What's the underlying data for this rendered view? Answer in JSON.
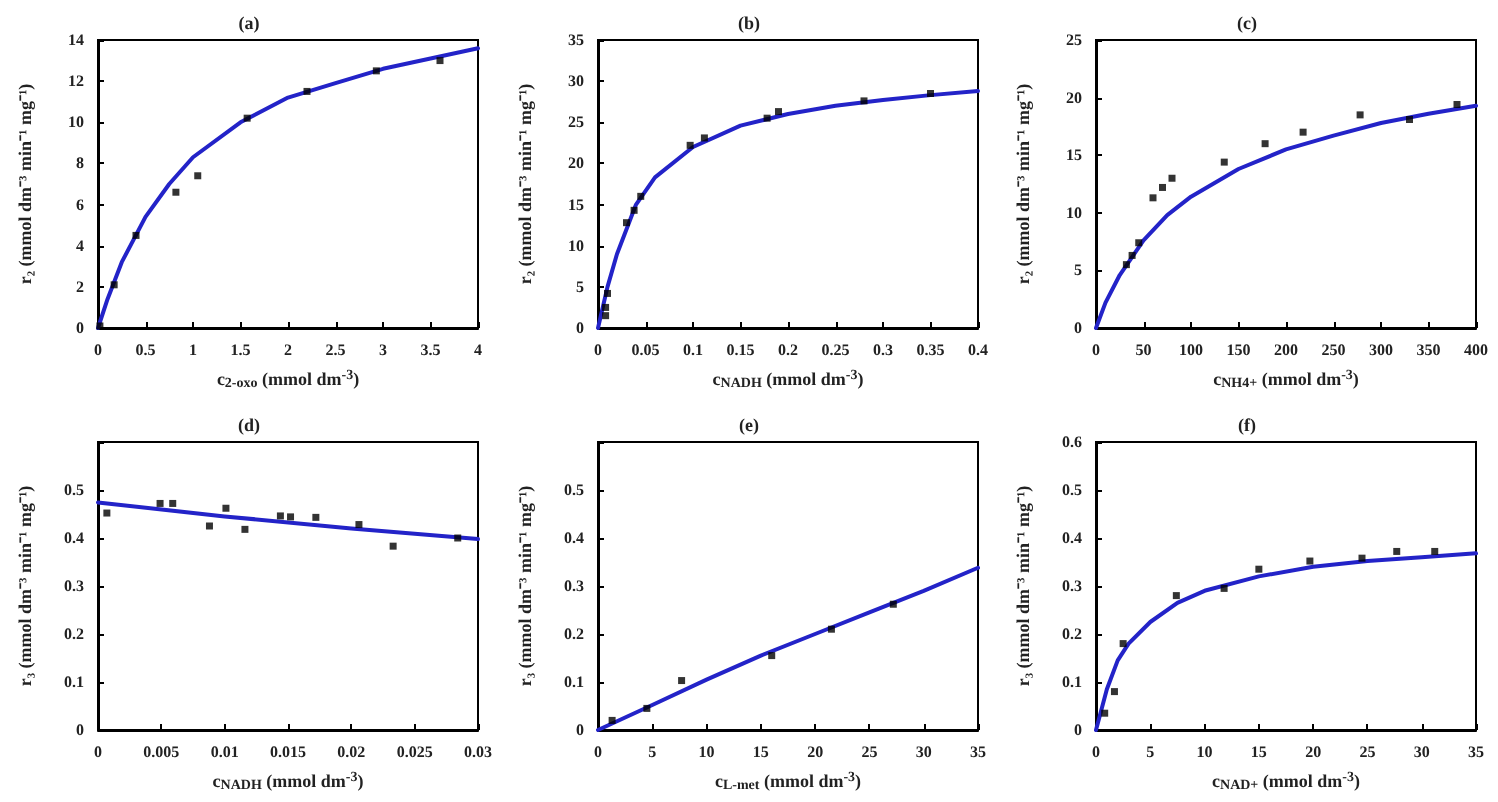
{
  "chart_data": [
    {
      "type": "scatter",
      "title": "(a)",
      "xlabel": "c$_{2-oxo}$ (mmol dm$^{-3}$)",
      "ylabel": "r₂ (mmol dm⁻³ min⁻¹ mg⁻¹)",
      "xlim": [
        0,
        4
      ],
      "xticks": [
        0,
        0.5,
        1,
        1.5,
        2,
        2.5,
        3,
        3.5,
        4
      ],
      "ylim": [
        0,
        14
      ],
      "yticks": [
        0,
        2,
        4,
        6,
        8,
        10,
        12,
        14
      ],
      "grid": false,
      "series": [
        {
          "type": "scatter",
          "color": "#000000",
          "marker": "square",
          "x": [
            0.02,
            0.17,
            0.4,
            0.82,
            1.05,
            1.57,
            2.2,
            2.93,
            3.6
          ],
          "values": [
            0.1,
            2.1,
            4.5,
            6.6,
            7.4,
            10.2,
            11.5,
            12.5,
            13.0
          ]
        },
        {
          "type": "line",
          "color": "#2323c8",
          "marker": "none",
          "line_style": "solid",
          "x": [
            0,
            0.1,
            0.25,
            0.5,
            0.75,
            1,
            1.5,
            2,
            2.5,
            3,
            3.5,
            4
          ],
          "values": [
            0,
            1.4,
            3.2,
            5.4,
            7.0,
            8.3,
            10.0,
            11.2,
            11.9,
            12.6,
            13.1,
            13.6
          ]
        }
      ]
    },
    {
      "type": "scatter",
      "title": "(b)",
      "xlabel": "c$_{NADH}$ (mmol dm$^{-3}$)",
      "ylabel": "r₂ (mmol dm⁻³ min⁻¹ mg⁻¹)",
      "xlim": [
        0,
        0.4
      ],
      "xticks": [
        0,
        0.05,
        0.1,
        0.15,
        0.2,
        0.25,
        0.3,
        0.35,
        0.4
      ],
      "ylim": [
        0,
        35
      ],
      "yticks": [
        0,
        5,
        10,
        15,
        20,
        25,
        30,
        35
      ],
      "grid": false,
      "series": [
        {
          "type": "scatter",
          "color": "#000000",
          "marker": "square",
          "x": [
            0.008,
            0.008,
            0.01,
            0.03,
            0.038,
            0.045,
            0.097,
            0.112,
            0.178,
            0.19,
            0.28,
            0.35
          ],
          "values": [
            1.5,
            2.5,
            4.2,
            12.8,
            14.3,
            16,
            22.2,
            23.1,
            25.5,
            26.3,
            27.6,
            28.5
          ]
        },
        {
          "type": "line",
          "color": "#2323c8",
          "marker": "none",
          "line_style": "solid",
          "x": [
            0,
            0.01,
            0.02,
            0.04,
            0.06,
            0.1,
            0.15,
            0.2,
            0.25,
            0.3,
            0.35,
            0.4
          ],
          "values": [
            0,
            5,
            9,
            15,
            18.3,
            22,
            24.6,
            26,
            27,
            27.7,
            28.3,
            28.8
          ]
        }
      ]
    },
    {
      "type": "scatter",
      "title": "(c)",
      "xlabel": "c$_{NH4+}$ (mmol dm$^{-3}$)",
      "ylabel": "r₂ (mmol dm⁻³ min⁻¹ mg⁻¹)",
      "xlim": [
        0,
        400
      ],
      "xticks": [
        0,
        50,
        100,
        150,
        200,
        250,
        300,
        350,
        400
      ],
      "ylim": [
        0,
        25
      ],
      "yticks": [
        0,
        5,
        10,
        15,
        20,
        25
      ],
      "grid": false,
      "series": [
        {
          "type": "scatter",
          "color": "#000000",
          "marker": "square",
          "x": [
            32,
            38,
            45,
            60,
            70,
            80,
            135,
            178,
            218,
            278,
            330,
            380
          ],
          "values": [
            5.5,
            6.3,
            7.4,
            11.3,
            12.2,
            13,
            14.4,
            16,
            17,
            18.5,
            18.1,
            19.4
          ]
        },
        {
          "type": "line",
          "color": "#2323c8",
          "marker": "none",
          "line_style": "solid",
          "x": [
            0,
            10,
            25,
            50,
            75,
            100,
            150,
            200,
            250,
            300,
            350,
            400
          ],
          "values": [
            0,
            2.2,
            4.6,
            7.6,
            9.8,
            11.4,
            13.8,
            15.5,
            16.7,
            17.8,
            18.6,
            19.3
          ]
        }
      ]
    },
    {
      "type": "scatter",
      "title": "(d)",
      "xlabel": "c$_{NADH}$ (mmol dm$^{-3}$)",
      "ylabel": "r₃ (mmol dm⁻³ min⁻¹ mg⁻¹)",
      "xlim": [
        0,
        0.03
      ],
      "xticks": [
        0,
        0.005,
        0.01,
        0.015,
        0.02,
        0.025,
        0.03
      ],
      "ylim": [
        0,
        0.6
      ],
      "yticks": [
        0,
        0.1,
        0.2,
        0.3,
        0.4,
        0.5,
        {
          "value": 0.6,
          "label": null
        }
      ],
      "grid": false,
      "series": [
        {
          "type": "scatter",
          "color": "#000000",
          "marker": "square",
          "x": [
            0.0007,
            0.0049,
            0.0059,
            0.0088,
            0.0101,
            0.0116,
            0.0144,
            0.0152,
            0.0172,
            0.0206,
            0.0233,
            0.0284
          ],
          "values": [
            0.452,
            0.472,
            0.472,
            0.425,
            0.462,
            0.418,
            0.446,
            0.444,
            0.443,
            0.428,
            0.383,
            0.4
          ]
        },
        {
          "type": "line",
          "color": "#2323c8",
          "marker": "none",
          "line_style": "solid",
          "x": [
            0,
            0.01,
            0.02,
            0.03
          ],
          "values": [
            0.474,
            0.445,
            0.42,
            0.398
          ]
        }
      ]
    },
    {
      "type": "scatter",
      "title": "(e)",
      "xlabel": "c$_{L-met}$ (mmol dm$^{-3}$)",
      "ylabel": "r₃ (mmol dm⁻³ min⁻¹ mg⁻¹)",
      "xlim": [
        0,
        35
      ],
      "xticks": [
        0,
        5,
        10,
        15,
        20,
        25,
        30,
        35
      ],
      "ylim": [
        0,
        0.6
      ],
      "yticks": [
        0,
        0.1,
        0.2,
        0.3,
        0.4,
        0.5,
        {
          "value": 0.6,
          "label": null
        }
      ],
      "grid": false,
      "series": [
        {
          "type": "scatter",
          "color": "#000000",
          "marker": "square",
          "x": [
            1.3,
            4.5,
            7.7,
            16,
            21.5,
            27.2
          ],
          "values": [
            0.02,
            0.045,
            0.103,
            0.155,
            0.21,
            0.262
          ]
        },
        {
          "type": "line",
          "color": "#2323c8",
          "marker": "none",
          "line_style": "solid",
          "x": [
            0,
            5,
            10,
            15,
            20,
            25,
            30,
            35
          ],
          "values": [
            0,
            0.052,
            0.105,
            0.155,
            0.2,
            0.245,
            0.29,
            0.338
          ]
        }
      ]
    },
    {
      "type": "scatter",
      "title": "(f)",
      "xlabel": "c$_{NAD+}$ (mmol dm$^{-3}$)",
      "ylabel": "r₃ (mmol dm⁻³ min⁻¹ mg⁻¹)",
      "xlim": [
        0,
        35
      ],
      "xticks": [
        0,
        5,
        10,
        15,
        20,
        25,
        30,
        35
      ],
      "ylim": [
        0,
        0.6
      ],
      "yticks": [
        0,
        0.1,
        0.2,
        0.3,
        0.4,
        0.5,
        0.6
      ],
      "grid": false,
      "series": [
        {
          "type": "scatter",
          "color": "#000000",
          "marker": "square",
          "x": [
            0.8,
            1.7,
            2.5,
            7.4,
            11.8,
            15,
            19.7,
            24.5,
            27.7,
            31.2
          ],
          "values": [
            0.035,
            0.08,
            0.18,
            0.28,
            0.295,
            0.335,
            0.352,
            0.358,
            0.372,
            0.372
          ]
        },
        {
          "type": "line",
          "color": "#2323c8",
          "marker": "none",
          "line_style": "solid",
          "x": [
            0,
            1,
            2,
            3,
            5,
            7.5,
            10,
            15,
            20,
            25,
            30,
            35
          ],
          "values": [
            0,
            0.085,
            0.145,
            0.18,
            0.225,
            0.265,
            0.29,
            0.32,
            0.34,
            0.352,
            0.36,
            0.368
          ]
        }
      ]
    }
  ]
}
